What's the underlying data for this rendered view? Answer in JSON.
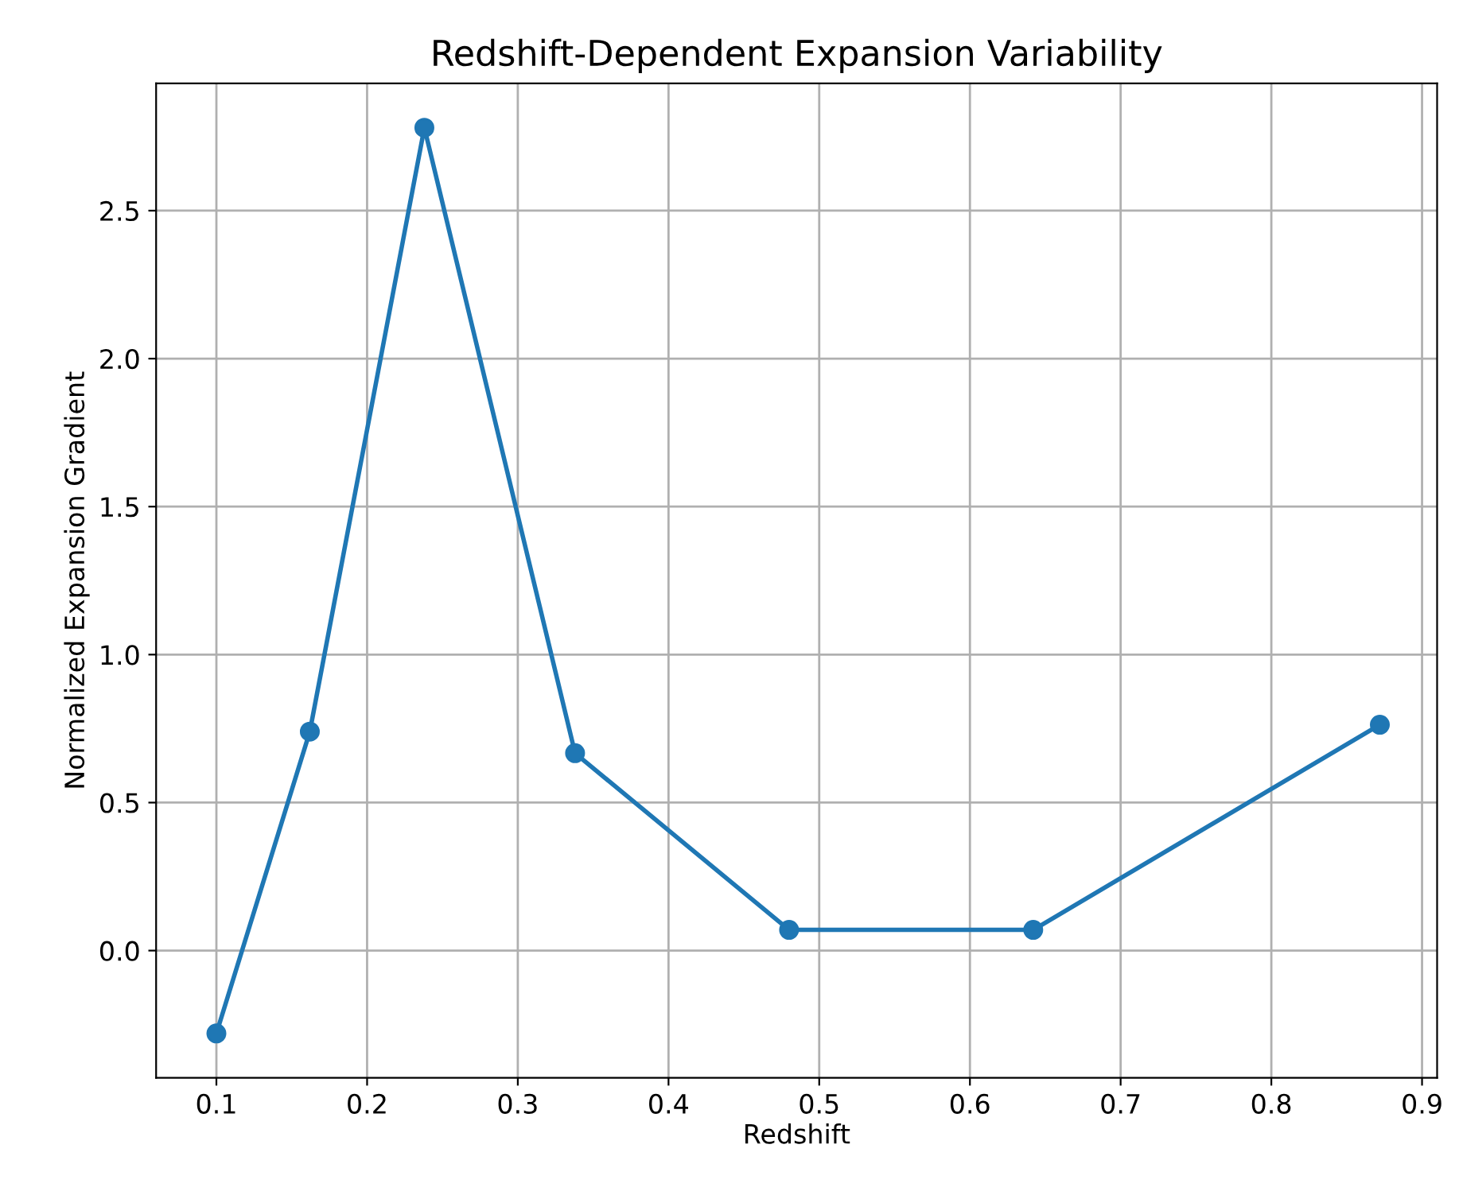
{
  "chart_data": {
    "type": "line",
    "title": "Redshift-Dependent Expansion Variability",
    "xlabel": "Redshift",
    "ylabel": "Normalized Expansion Gradient",
    "x": [
      0.1,
      0.162,
      0.238,
      0.338,
      0.48,
      0.642,
      0.872
    ],
    "series": [
      {
        "color": "#1f77b4",
        "values": [
          -0.28,
          0.74,
          2.78,
          0.667,
          0.07,
          0.07,
          0.763
        ]
      }
    ],
    "xlim": [
      0.06,
      0.91
    ],
    "ylim": [
      -0.43,
      2.93
    ],
    "xticks": [
      0.1,
      0.2,
      0.3,
      0.4,
      0.5,
      0.6,
      0.7,
      0.8,
      0.9
    ],
    "yticks": [
      {
        "value": 0,
        "label": "0.0"
      },
      0.5,
      {
        "value": 1,
        "label": "1.0"
      },
      1.5,
      {
        "value": 2,
        "label": "2.0"
      },
      2.5
    ],
    "grid": true,
    "marker": "circle",
    "line_style": "solid"
  }
}
